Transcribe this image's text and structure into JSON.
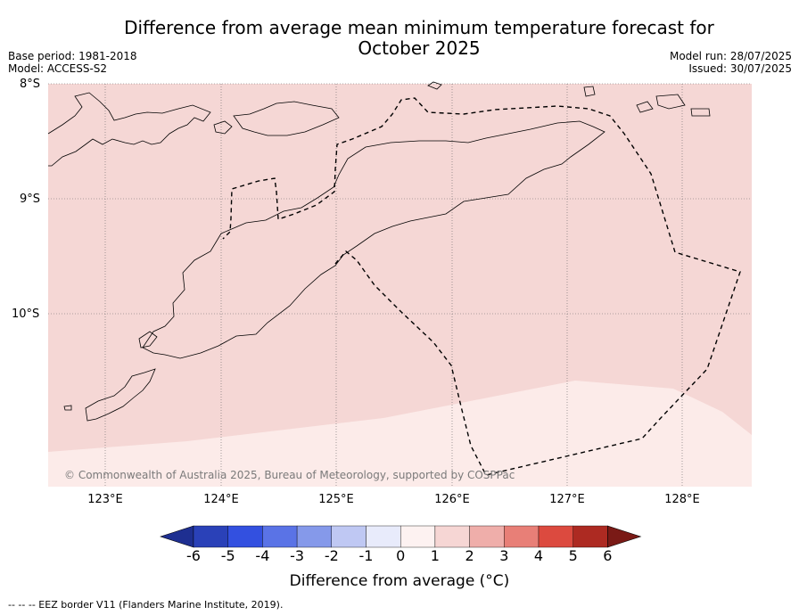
{
  "title_line1": "Difference from average mean minimum temperature forecast for",
  "title_line2": "October 2025",
  "base_period": "Base period: 1981-2018",
  "model": "Model: ACCESS-S2",
  "model_run": "Model run: 28/07/2025",
  "issued": "Issued: 30/07/2025",
  "lat_labels": [
    "8°S",
    "9°S",
    "10°S"
  ],
  "lon_labels": [
    "123°E",
    "124°E",
    "125°E",
    "126°E",
    "127°E",
    "128°E"
  ],
  "copyright": "© Commonwealth of Australia 2025, Bureau of Meteorology, supported by COSPPac",
  "colorbar": {
    "ticks": [
      "-6",
      "-5",
      "-4",
      "-3",
      "-2",
      "-1",
      "0",
      "1",
      "2",
      "3",
      "4",
      "5",
      "6"
    ],
    "colors": [
      "#1e2f91",
      "#2a41b8",
      "#3350e0",
      "#5a73e6",
      "#8599ea",
      "#bfc8f3",
      "#e8ebfb",
      "#fdf2f1",
      "#f6d6d4",
      "#efaeaa",
      "#e87f77",
      "#dc4a3f",
      "#ad2a22",
      "#7a1a16"
    ],
    "label": "Difference from average (°C)"
  },
  "legend_note": "-- -- -- EEZ border V11 (Flanders Marine Institute, 2019)."
}
